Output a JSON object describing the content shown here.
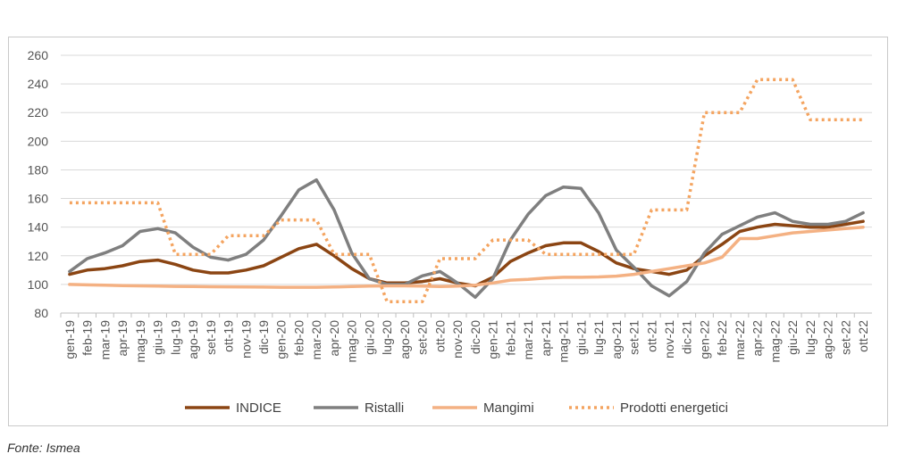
{
  "source": "Fonte: Ismea",
  "colors": {
    "indice": "#8b4513",
    "ristalli": "#7f7f7f",
    "mangimi": "#f4b183",
    "prodotti_energetici": "#f4a460",
    "grid": "#d9d9d9",
    "axis": "#bfbfbf"
  },
  "chart_data": {
    "type": "line",
    "title": "",
    "xlabel": "",
    "ylabel": "",
    "ylim": [
      80,
      260
    ],
    "yticks": [
      80,
      100,
      120,
      140,
      160,
      180,
      200,
      220,
      240,
      260
    ],
    "grid": true,
    "legend_position": "bottom",
    "categories": [
      "gen-19",
      "feb-19",
      "mar-19",
      "apr-19",
      "mag-19",
      "giu-19",
      "lug-19",
      "ago-19",
      "set-19",
      "ott-19",
      "nov-19",
      "dic-19",
      "gen-20",
      "feb-20",
      "mar-20",
      "apr-20",
      "mag-20",
      "giu-20",
      "lug-20",
      "ago-20",
      "set-20",
      "ott-20",
      "nov-20",
      "dic-20",
      "gen-21",
      "feb-21",
      "mar-21",
      "apr-21",
      "mag-21",
      "giu-21",
      "lug-21",
      "ago-21",
      "set-21",
      "ott-21",
      "nov-21",
      "dic-21",
      "gen-22",
      "feb-22",
      "mar-22",
      "apr-22",
      "mag-22",
      "giu-22",
      "lug-22",
      "ago-22",
      "set-22",
      "ott-22"
    ],
    "series": [
      {
        "name": "INDICE",
        "color_key": "indice",
        "style": "solid",
        "width": 3.5,
        "values": [
          107,
          110,
          111,
          113,
          116,
          117,
          114,
          110,
          108,
          108,
          110,
          113,
          119,
          125,
          128,
          120,
          111,
          104,
          101,
          101,
          102,
          104,
          101,
          99,
          105,
          116,
          122,
          127,
          129,
          129,
          123,
          115,
          111,
          109,
          107,
          110,
          120,
          128,
          137,
          140,
          142,
          141,
          140,
          140,
          142,
          144
        ]
      },
      {
        "name": "Ristalli",
        "color_key": "ristalli",
        "style": "solid",
        "width": 3.5,
        "values": [
          109,
          118,
          122,
          127,
          137,
          139,
          136,
          126,
          119,
          117,
          121,
          131,
          148,
          166,
          173,
          152,
          122,
          104,
          100,
          100,
          106,
          109,
          101,
          91,
          104,
          131,
          149,
          162,
          168,
          167,
          150,
          124,
          112,
          99,
          92,
          102,
          122,
          135,
          141,
          147,
          150,
          144,
          142,
          142,
          144,
          150
        ]
      },
      {
        "name": "Mangimi",
        "color_key": "mangimi",
        "style": "solid",
        "width": 3.5,
        "values": [
          100,
          99.7,
          99.5,
          99.2,
          99,
          98.8,
          98.6,
          98.5,
          98.4,
          98.3,
          98.2,
          98.1,
          98,
          98,
          98,
          98.2,
          98.5,
          98.8,
          99,
          99,
          98.8,
          98.5,
          98.8,
          99.5,
          101,
          103,
          103.5,
          104.5,
          105,
          105,
          105.2,
          105.8,
          107,
          109,
          111,
          113,
          115,
          119,
          132,
          132,
          134,
          136,
          137,
          138,
          139,
          140
        ]
      },
      {
        "name": "Prodotti energetici",
        "color_key": "prodotti_energetici",
        "style": "dotted",
        "width": 3.5,
        "values": [
          157,
          157,
          157,
          157,
          157,
          157,
          121,
          121,
          121,
          134,
          134,
          134,
          145,
          145,
          145,
          121,
          121,
          121,
          88,
          88,
          88,
          118,
          118,
          118,
          131,
          131,
          131,
          121,
          121,
          121,
          121,
          121,
          121,
          152,
          152,
          152,
          220,
          220,
          220,
          243,
          243,
          243,
          215,
          215,
          215,
          215
        ]
      }
    ]
  }
}
